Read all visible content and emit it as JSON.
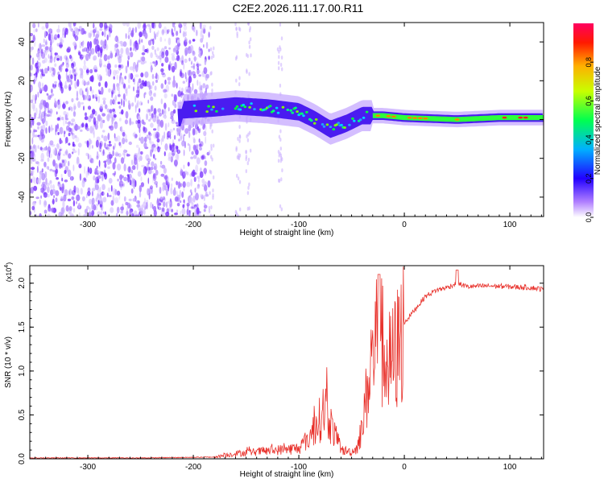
{
  "title": "C2E2.2026.111.17.00.R11",
  "chart_data": [
    {
      "type": "heatmap",
      "name": "spectrogram",
      "xlabel": "Height of straight line (km)",
      "ylabel": "Frequency (Hz)",
      "xlim": [
        -355,
        132
      ],
      "ylim": [
        -50,
        50
      ],
      "xticks": [
        -300,
        -200,
        -100,
        0,
        100
      ],
      "yticks": [
        -40,
        -20,
        0,
        20,
        40
      ],
      "xtick_labels": [
        "-300",
        "-200",
        "-100",
        "0",
        "100"
      ],
      "ytick_labels": [
        "-40",
        "-20",
        "0",
        "20",
        "40"
      ],
      "ridge_center_hz": [
        {
          "x": -210,
          "y": 5
        },
        {
          "x": -180,
          "y": 6
        },
        {
          "x": -160,
          "y": 7
        },
        {
          "x": -130,
          "y": 6
        },
        {
          "x": -100,
          "y": 4
        },
        {
          "x": -85,
          "y": 0
        },
        {
          "x": -70,
          "y": -5
        },
        {
          "x": -55,
          "y": -2
        },
        {
          "x": -40,
          "y": 2
        },
        {
          "x": -20,
          "y": 2
        },
        {
          "x": 0,
          "y": 1
        },
        {
          "x": 50,
          "y": 0
        },
        {
          "x": 90,
          "y": 1
        },
        {
          "x": 132,
          "y": 1
        }
      ],
      "colorbar": {
        "label": "Normalized spectral amplitude",
        "range": [
          0,
          1
        ],
        "ticks": [
          0.0,
          0.2,
          0.4,
          0.6,
          0.8
        ],
        "tick_labels": [
          "0.0",
          "0.2",
          "0.4",
          "0.6",
          "0.8"
        ],
        "colors": [
          "#ffffff",
          "#8a2be2",
          "#0000ff",
          "#00e5ff",
          "#00ff00",
          "#ffff00",
          "#ff8000",
          "#ff0000",
          "#ff00aa"
        ]
      }
    },
    {
      "type": "line",
      "name": "snr",
      "xlabel": "Height of straight line (km)",
      "ylabel": "SNR (10 * v/v)",
      "y_multiplier": "(x10",
      "y_multiplier_exp": "4",
      "y_multiplier_close": ")",
      "xlim": [
        -355,
        132
      ],
      "ylim": [
        0,
        2.2
      ],
      "xticks": [
        -300,
        -200,
        -100,
        0,
        100
      ],
      "yticks": [
        0.0,
        0.5,
        1.0,
        1.5,
        2.0
      ],
      "xtick_labels": [
        "-300",
        "-200",
        "-100",
        "0",
        "100"
      ],
      "ytick_labels": [
        "0.0",
        "0.5",
        "1.0",
        "1.5",
        "2.0"
      ],
      "color": "#e8302a",
      "series": [
        {
          "name": "SNR",
          "x": [
            -355,
            -250,
            -180,
            -160,
            -140,
            -120,
            -100,
            -90,
            -80,
            -75,
            -70,
            -60,
            -50,
            -45,
            -40,
            -35,
            -30,
            -25,
            -20,
            -15,
            -10,
            -5,
            0,
            10,
            20,
            30,
            40,
            50,
            60,
            80,
            100,
            120,
            132
          ],
          "y": [
            0.01,
            0.01,
            0.02,
            0.06,
            0.08,
            0.1,
            0.12,
            0.25,
            0.45,
            0.6,
            0.4,
            0.1,
            0.08,
            0.12,
            0.35,
            0.8,
            1.2,
            1.45,
            1.25,
            1.05,
            1.15,
            1.3,
            1.55,
            1.7,
            1.85,
            1.92,
            1.95,
            2.0,
            1.96,
            1.97,
            1.96,
            1.95,
            1.93
          ]
        }
      ]
    }
  ]
}
